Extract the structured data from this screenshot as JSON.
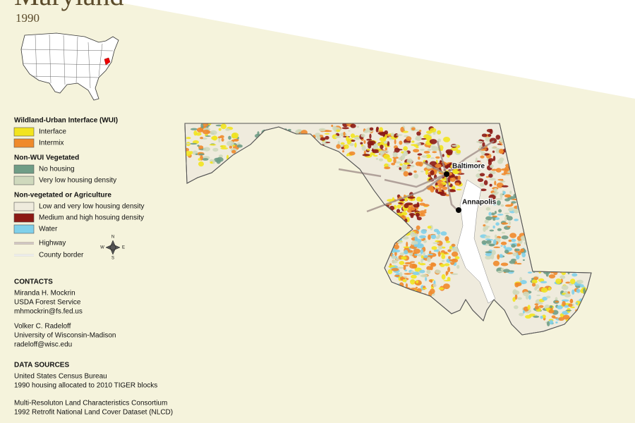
{
  "header": {
    "title": "Maryland",
    "subtitle": "1990"
  },
  "legend": {
    "sections": [
      {
        "title": "Wildland-Urban Interface (WUI)",
        "items": [
          {
            "label": "Interface",
            "color": "#f2e41f"
          },
          {
            "label": "Intermix",
            "color": "#ef8a2b"
          }
        ]
      },
      {
        "title": "Non-WUI Vegetated",
        "items": [
          {
            "label": "No housing",
            "color": "#6f9d86"
          },
          {
            "label": "Very low housing density",
            "color": "#cfd9bd"
          }
        ]
      },
      {
        "title": "Non-vegetated or Agriculture",
        "items": [
          {
            "label": "Low and very low housing density",
            "color": "#efebdd"
          },
          {
            "label": "Medium and high hosuing density",
            "color": "#8c1a14"
          },
          {
            "label": "Water",
            "color": "#7fd0ea"
          }
        ]
      }
    ],
    "line_items": [
      {
        "label": "Highway",
        "color": "#a08f8a"
      },
      {
        "label": "County border",
        "color": "#d8d8d8"
      }
    ]
  },
  "compass": {
    "n": "N",
    "e": "E",
    "s": "S",
    "w": "W"
  },
  "cities": [
    {
      "label": "Baltimore"
    },
    {
      "label": "Annapolis"
    }
  ],
  "contacts": {
    "title": "CONTACTS",
    "people": [
      [
        "Miranda H. Mockrin",
        "USDA Forest Service",
        "mhmockrin@fs.fed.us"
      ],
      [
        "Volker C. Radeloff",
        "University of Wisconsin-Madison",
        "radeloff@wisc.edu"
      ]
    ]
  },
  "data_sources": {
    "title": "DATA SOURCES",
    "groups": [
      [
        "United States Census Bureau",
        "1990 housing allocated to 2010 TIGER blocks"
      ],
      [
        "Multi-Resoluton Land Characteristics Consortium",
        "1992 Retrofit National Land Cover Dataset (NLCD)"
      ]
    ]
  }
}
